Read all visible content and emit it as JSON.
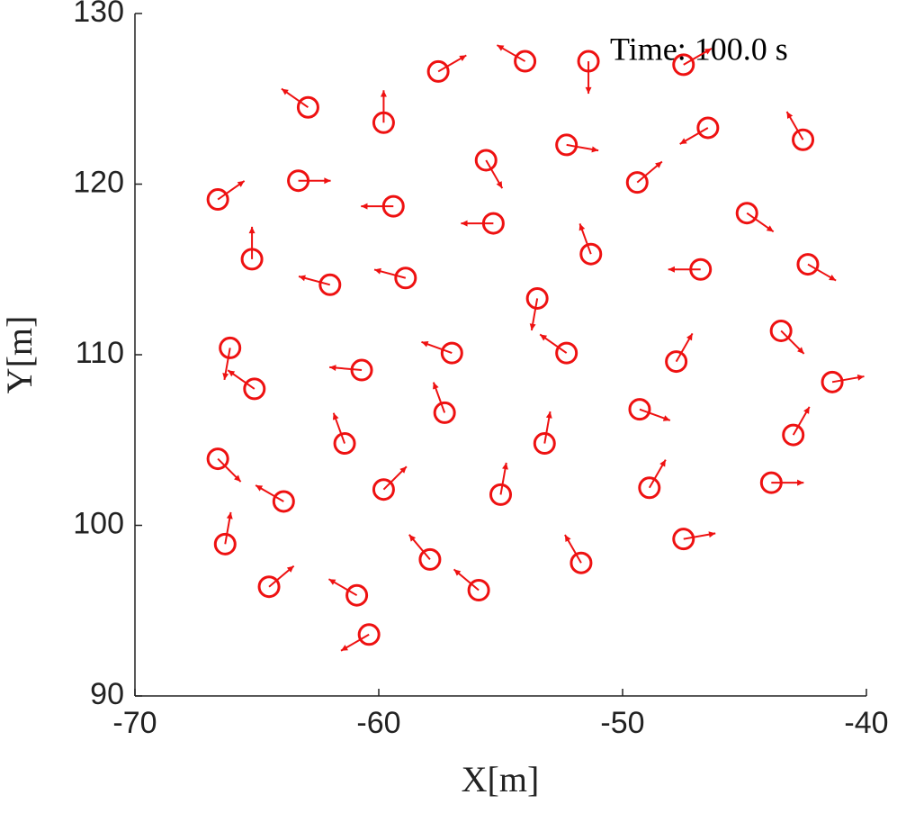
{
  "chart_data": {
    "type": "scatter",
    "annotation": "Time: 100.0 s",
    "xlabel": "X[m]",
    "ylabel": "Y[m]",
    "xlim": [
      -70,
      -40
    ],
    "xticks": [
      -70,
      -60,
      -50,
      -40
    ],
    "ylim": [
      90,
      130
    ],
    "yticks": [
      90,
      100,
      110,
      120,
      130
    ],
    "grid": false,
    "color": "#ee1111",
    "x": [
      -57.56,
      -54.0,
      -51.4,
      -47.5,
      -62.9,
      -59.8,
      -46.5,
      -42.6,
      -55.6,
      -52.3,
      -63.3,
      -49.4,
      -66.6,
      -59.4,
      -44.9,
      -55.3,
      -65.2,
      -51.3,
      -46.8,
      -42.4,
      -62.0,
      -58.9,
      -53.5,
      -43.5,
      -66.1,
      -57.0,
      -52.3,
      -60.7,
      -47.8,
      -41.4,
      -65.1,
      -57.3,
      -49.3,
      -43.0,
      -61.4,
      -53.2,
      -66.6,
      -59.8,
      -48.9,
      -43.9,
      -55.0,
      -63.9,
      -66.3,
      -47.5,
      -57.9,
      -51.7,
      -64.5,
      -55.9,
      -60.9,
      -60.4
    ],
    "values": [
      126.6,
      127.2,
      127.2,
      127.0,
      124.5,
      123.6,
      123.3,
      122.6,
      121.4,
      122.3,
      120.2,
      120.1,
      119.1,
      118.7,
      118.3,
      117.7,
      115.6,
      115.9,
      115.0,
      115.3,
      114.1,
      114.5,
      113.3,
      111.4,
      110.4,
      110.1,
      110.1,
      109.1,
      109.6,
      108.4,
      108.0,
      106.6,
      106.8,
      105.3,
      104.8,
      104.8,
      103.9,
      102.1,
      102.2,
      102.5,
      101.8,
      101.4,
      98.9,
      99.2,
      98.0,
      97.8,
      96.4,
      96.2,
      95.9,
      93.6
    ],
    "headings": [
      30,
      150,
      -90,
      30,
      145,
      90,
      -150,
      120,
      -60,
      -10,
      0,
      40,
      35,
      180,
      -35,
      180,
      90,
      110,
      180,
      -30,
      165,
      165,
      -100,
      -45,
      -100,
      160,
      145,
      175,
      60,
      10,
      145,
      110,
      -20,
      60,
      110,
      80,
      -45,
      45,
      60,
      0,
      80,
      150,
      80,
      10,
      130,
      120,
      40,
      140,
      150,
      -150
    ]
  }
}
